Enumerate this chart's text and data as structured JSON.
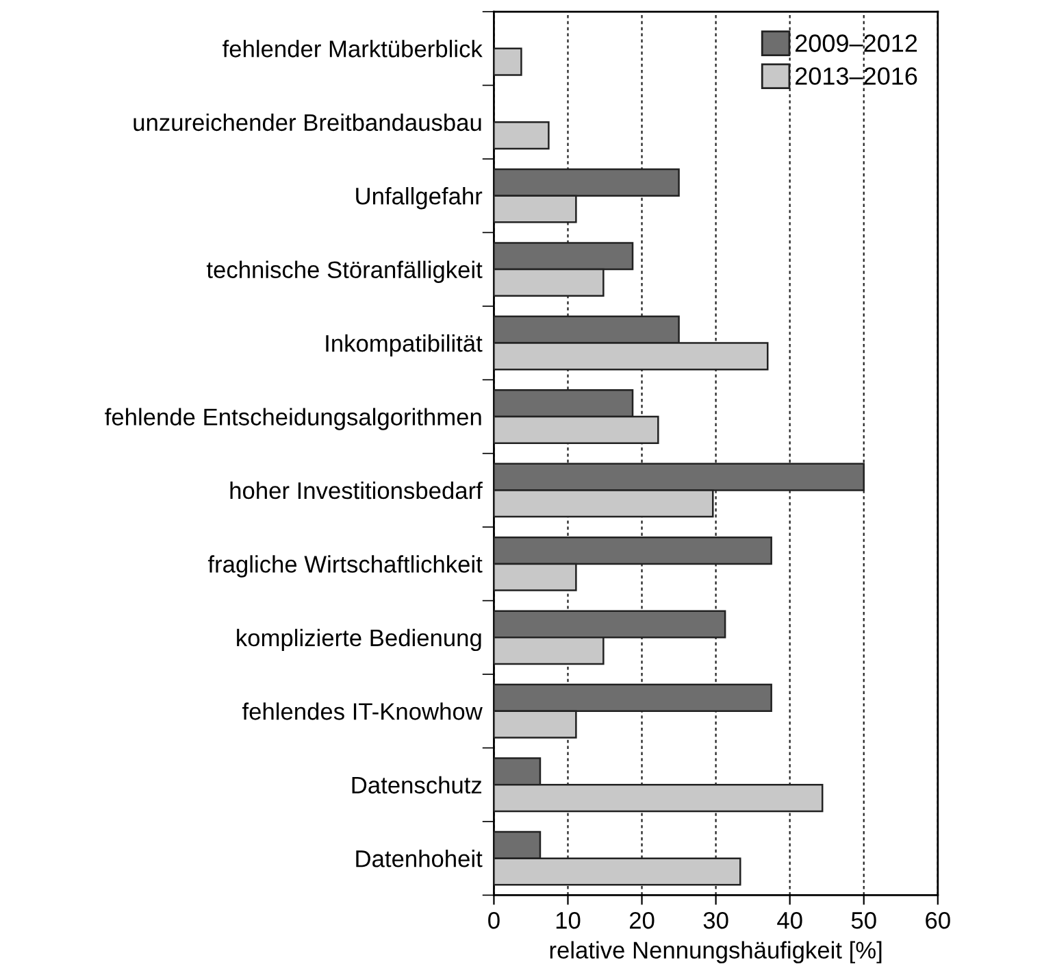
{
  "chart_data": {
    "type": "bar",
    "orientation": "horizontal",
    "categories": [
      "fehlender Marktüberblick",
      "unzureichender Breitbandausbau",
      "Unfallgefahr",
      "technische Störanfälligkeit",
      "Inkompatibilität",
      "fehlende Entscheidungsalgorithmen",
      "hoher Investitionsbedarf",
      "fragliche Wirtschaftlichkeit",
      "komplizierte Bedienung",
      "fehlendes IT-Knowhow",
      "Datenschutz",
      "Datenhoheit"
    ],
    "series": [
      {
        "name": "2009–2012",
        "color": "#6e6e6e",
        "values": [
          null,
          null,
          25,
          18.75,
          25,
          18.75,
          50,
          37.5,
          31.25,
          37.5,
          6.25,
          6.25
        ]
      },
      {
        "name": "2013–2016",
        "color": "#c8c8c8",
        "values": [
          3.7,
          7.4,
          11.1,
          14.8,
          37.0,
          22.2,
          29.6,
          11.1,
          14.8,
          11.1,
          44.4,
          33.3
        ]
      }
    ],
    "xlabel": "relative Nennungshäufigkeit [%]",
    "xlim": [
      0,
      60
    ],
    "xticks": [
      0,
      10,
      20,
      30,
      40,
      50,
      60
    ],
    "grid": "x",
    "legend": "top right"
  }
}
